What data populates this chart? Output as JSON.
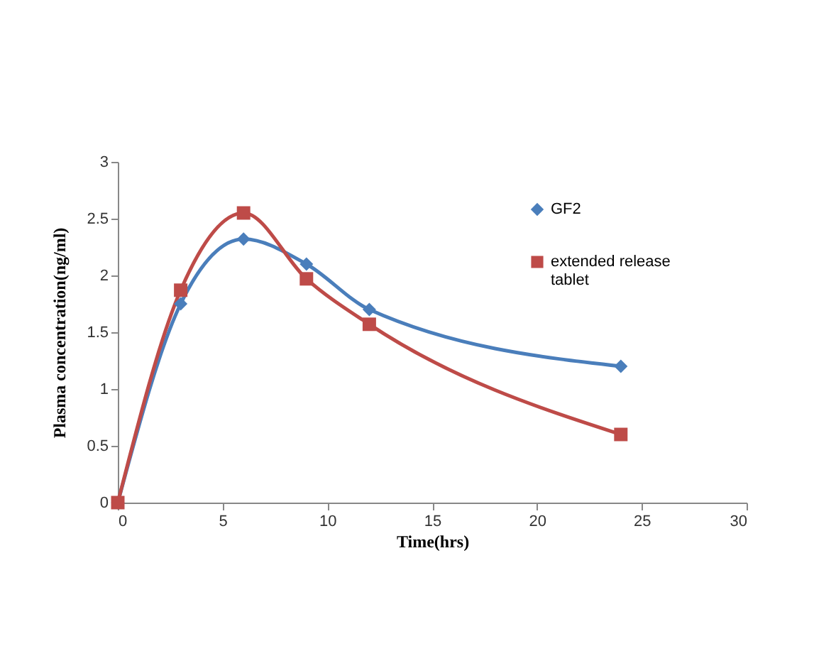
{
  "chart_data": {
    "type": "line",
    "xlabel": "Time(hrs)",
    "ylabel": "Plasma concentration(ng/ml)",
    "x": [
      0,
      3,
      6,
      9,
      12,
      24
    ],
    "series": [
      {
        "name": "GF2",
        "color": "#4a7ebb",
        "marker": "diamond",
        "values": [
          0,
          1.75,
          2.32,
          2.1,
          1.7,
          1.2
        ]
      },
      {
        "name": "extended release tablet",
        "color": "#be4b48",
        "marker": "square",
        "values": [
          0,
          1.87,
          2.55,
          1.97,
          1.57,
          0.6
        ]
      }
    ],
    "xlim": [
      0,
      30
    ],
    "xticks": [
      0,
      5,
      10,
      15,
      20,
      25,
      30
    ],
    "ylim": [
      0,
      3
    ],
    "yticks": [
      0,
      0.5,
      1,
      1.5,
      2,
      2.5,
      3
    ],
    "line_style": "solid",
    "grid": false,
    "legend": "top right"
  }
}
